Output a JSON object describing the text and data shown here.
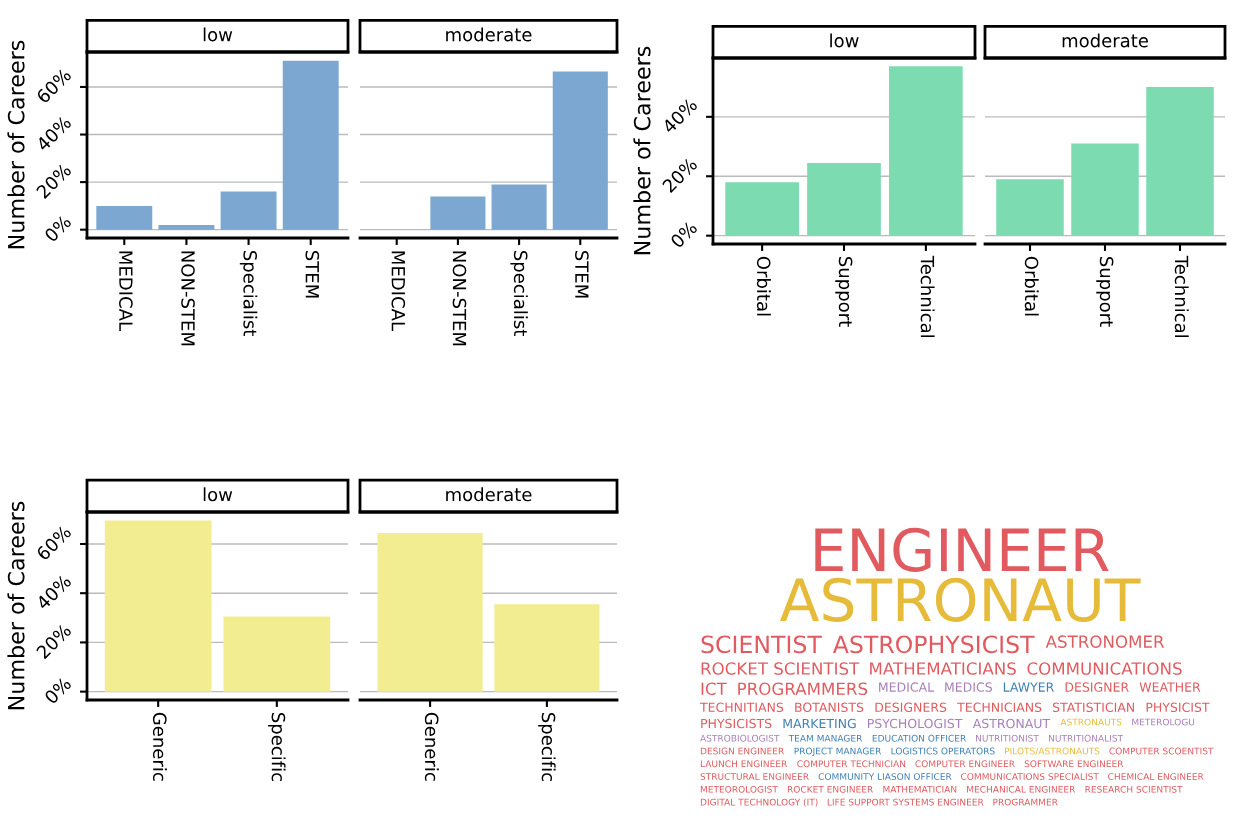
{
  "chart_data": [
    {
      "type": "bar",
      "title": "low",
      "ylabel": "Number of Careers",
      "categories": [
        "MEDICAL",
        "NON-STEM",
        "Specialist",
        "STEM"
      ],
      "values": [
        10,
        2,
        16,
        71
      ],
      "color": "#7ba7d1",
      "ylim": [
        -3.5,
        74.7
      ],
      "yticks": [
        {
          "value": 0,
          "label": "0%"
        },
        {
          "value": 20,
          "label": "20%"
        },
        {
          "value": 40,
          "label": "40%"
        },
        {
          "value": 60,
          "label": "60%"
        }
      ],
      "grid": "y"
    },
    {
      "type": "bar",
      "title": "moderate",
      "categories": [
        "MEDICAL",
        "NON-STEM",
        "Specialist",
        "STEM"
      ],
      "values": [
        0,
        14,
        19,
        66.5
      ],
      "color": "#7ba7d1",
      "ylim": [
        -3.5,
        74.7
      ],
      "yticks": [
        0,
        20,
        40,
        60
      ],
      "grid": "y",
      "tick_labels": "x"
    },
    {
      "type": "bar",
      "title": "low",
      "ylabel": "Number of Careers",
      "categories": [
        "Orbital",
        "Support",
        "Technical"
      ],
      "values": [
        18,
        24.5,
        57
      ],
      "color": "#7ddbb1",
      "ylim": [
        -2.8,
        59.8
      ],
      "yticks": [
        {
          "value": 0,
          "label": "0%"
        },
        {
          "value": 20,
          "label": "20%"
        },
        {
          "value": 40,
          "label": "40%"
        }
      ],
      "grid": "y"
    },
    {
      "type": "bar",
      "title": "moderate",
      "categories": [
        "Orbital",
        "Support",
        "Technical"
      ],
      "values": [
        19,
        31,
        50
      ],
      "color": "#7ddbb1",
      "ylim": [
        -2.8,
        59.8
      ],
      "yticks": [
        0,
        20,
        40
      ],
      "grid": "y",
      "tick_labels": "x"
    },
    {
      "type": "bar",
      "title": "low",
      "ylabel": "Number of Careers",
      "categories": [
        "Generic",
        "Specific"
      ],
      "values": [
        69.5,
        30.5
      ],
      "color": "#f1ed90",
      "ylim": [
        -3.4,
        73
      ],
      "yticks": [
        {
          "value": 0,
          "label": "0%"
        },
        {
          "value": 20,
          "label": "20%"
        },
        {
          "value": 40,
          "label": "40%"
        },
        {
          "value": 60,
          "label": "60%"
        }
      ],
      "grid": "y"
    },
    {
      "type": "bar",
      "title": "moderate",
      "categories": [
        "Generic",
        "Specific"
      ],
      "values": [
        64.5,
        35.5
      ],
      "color": "#f1ed90",
      "ylim": [
        -3.4,
        73
      ],
      "yticks": [
        0,
        20,
        40,
        60
      ],
      "grid": "y",
      "tick_labels": "x"
    },
    {
      "type": "other",
      "annotations": [
        "ENGINEER",
        "ASTRONAUT",
        "SCIENTIST",
        "ASTROPHYSICIST",
        "ASTRONOMER",
        "ROCKET SCIENTIST",
        "MATHEMATICIANS",
        "COMMUNICATIONS",
        "ICT",
        "PROGRAMMERS",
        "MEDICAL",
        "MEDICS",
        "LAWYER",
        "DESIGNER",
        "WEATHER",
        "TECHNITIANS",
        "BOTANISTS",
        "DESIGNERS",
        "TECHNICIANS",
        "STATISTICIAN",
        "PHYSICIST",
        "PHYSICISTS",
        "MARKETING",
        "PSYCHOLOGIST",
        "ASTRONAUT",
        "ASTRONAUTS",
        "METEROLOGU",
        "ASTROBIOLOGIST",
        "TEAM MANAGER",
        "EDUCATION OFFICER",
        "NUTRITIONIST",
        "NUTRITIONALIST",
        "DESIGN ENGINEER",
        "PROJECT MANAGER",
        "LOGISTICS OPERATORS",
        "PILOTS/ASTRONAUTS",
        "COMPUTER SCOENTIST",
        "LAUNCH ENGINEER",
        "COMPUTER TECHNICIAN",
        "COMPUTER ENGINEER",
        "SOFTWARE ENGINEER",
        "STRUCTURAL ENGINEER",
        "COMMUNITY LIASON OFFICER",
        "COMMUNICATIONS SPECIALIST",
        "CHEMICAL ENGINEER",
        "METEOROLOGIST",
        "ROCKET ENGINEER",
        "MATHEMATICIAN",
        "MECHANICAL ENGINEER",
        "RESEARCH SCIENTIST",
        "DIGITAL TECHNOLOGY (IT)",
        "LIFE SUPPORT SYSTEMS ENGINEER",
        "PROGRAMMER"
      ],
      "colors": [
        "#e05a5f",
        "#e6bb3a",
        "#e05a5f",
        "#e05a5f",
        "#e05a5f",
        "#e05a5f",
        "#e05a5f",
        "#e05a5f",
        "#e05a5f",
        "#e05a5f",
        "#a77fb8",
        "#a77fb8",
        "#3f7fb5",
        "#e05a5f",
        "#e05a5f",
        "#e05a5f",
        "#e05a5f",
        "#e05a5f",
        "#e05a5f",
        "#e05a5f",
        "#e05a5f",
        "#e05a5f",
        "#3f7fb5",
        "#a77fb8",
        "#a77fb8",
        "#e6bb3a",
        "#a77fb8",
        "#a77fb8",
        "#3f7fb5",
        "#3f7fb5",
        "#a77fb8",
        "#a77fb8",
        "#e05a5f",
        "#3f7fb5",
        "#3f7fb5",
        "#e6bb3a",
        "#e05a5f",
        "#e05a5f",
        "#e05a5f",
        "#e05a5f",
        "#e05a5f",
        "#e05a5f",
        "#3f7fb5",
        "#e05a5f",
        "#e05a5f",
        "#e05a5f",
        "#e05a5f",
        "#e05a5f",
        "#e05a5f",
        "#e05a5f",
        "#e05a5f",
        "#e05a5f",
        "#e05a5f"
      ]
    }
  ]
}
